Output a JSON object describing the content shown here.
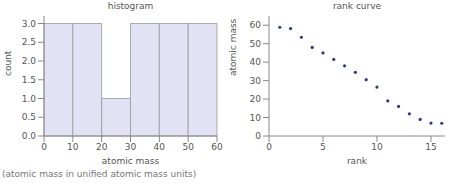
{
  "chart_data": [
    {
      "type": "histogram",
      "title": "histogram",
      "x_label": "atomic mass",
      "y_label": "count",
      "bins": [
        0,
        10,
        20,
        30,
        40,
        50,
        60
      ],
      "values": [
        3,
        3,
        1,
        3,
        3,
        3
      ],
      "color": "#e2e2f4",
      "xlim": [
        0,
        60
      ],
      "xticks": [
        0,
        10,
        20,
        30,
        40,
        50,
        60
      ],
      "ylim": [
        0,
        3.2
      ],
      "yticks": [
        {
          "value": 0,
          "label": "0.0"
        },
        {
          "value": 0.5,
          "label": "0.5"
        },
        {
          "value": 1,
          "label": "1.0"
        },
        {
          "value": 1.5,
          "label": "1.5"
        },
        {
          "value": 2,
          "label": "2.0"
        },
        {
          "value": 2.5,
          "label": "2.5"
        },
        {
          "value": 3,
          "label": "3.0"
        }
      ]
    },
    {
      "type": "scatter",
      "title": "rank curve",
      "x_label": "rank",
      "y_label": "atomic mass",
      "x": [
        1,
        2,
        3,
        4,
        5,
        6,
        7,
        8,
        9,
        10,
        11,
        12,
        13,
        14,
        15,
        16
      ],
      "values": [
        58.9,
        58.2,
        53.5,
        48.0,
        45.0,
        41.5,
        38.0,
        34.5,
        30.5,
        26.5,
        19.0,
        16.0,
        12.0,
        9.0,
        7.0,
        6.9
      ],
      "color": "#2b3a8a",
      "marker": "circle",
      "xlim": [
        0,
        16.3
      ],
      "xticks": [
        0,
        5,
        10,
        15
      ],
      "ylim": [
        0,
        65
      ],
      "yticks": [
        0,
        10,
        20,
        30,
        40,
        50,
        60
      ]
    }
  ],
  "footnote": "(atomic mass in unified atomic mass units)"
}
